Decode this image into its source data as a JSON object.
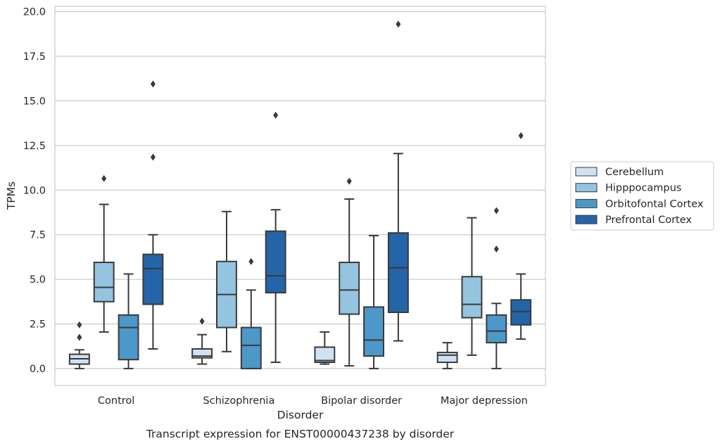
{
  "chart_data": {
    "type": "box",
    "xlabel": "Disorder",
    "ylabel": "TPMs",
    "caption": "Transcript expression for ENST00000437238 by disorder",
    "ylim": [
      -0.95,
      20.3
    ],
    "yticks": [
      0.0,
      2.5,
      5.0,
      7.5,
      10.0,
      12.5,
      15.0,
      17.5,
      20.0
    ],
    "ytick_labels": [
      "0.0",
      "2.5",
      "5.0",
      "7.5",
      "10.0",
      "12.5",
      "15.0",
      "17.5",
      "20.0"
    ],
    "grid": "horizontal",
    "legend_position": "right",
    "categories": [
      "Control",
      "Schizophrenia",
      "Bipolar disorder",
      "Major depression"
    ],
    "series": [
      {
        "name": "Cerebellum",
        "color": "#d0e2f1",
        "boxes": [
          {
            "whislo": 0.0,
            "q1": 0.25,
            "median": 0.55,
            "q3": 0.8,
            "whishi": 1.05,
            "fliers": [
              1.75,
              2.45
            ]
          },
          {
            "whislo": 0.25,
            "q1": 0.6,
            "median": 0.7,
            "q3": 1.1,
            "whishi": 1.9,
            "fliers": [
              2.65
            ]
          },
          {
            "whislo": 0.25,
            "q1": 0.35,
            "median": 0.45,
            "q3": 1.2,
            "whishi": 2.05,
            "fliers": []
          },
          {
            "whislo": 0.0,
            "q1": 0.35,
            "median": 0.75,
            "q3": 0.9,
            "whishi": 1.45,
            "fliers": []
          }
        ]
      },
      {
        "name": "Hipppocampus",
        "color": "#94c4df",
        "boxes": [
          {
            "whislo": 2.05,
            "q1": 3.75,
            "median": 4.55,
            "q3": 5.95,
            "whishi": 9.2,
            "fliers": [
              10.65
            ]
          },
          {
            "whislo": 0.95,
            "q1": 2.3,
            "median": 4.15,
            "q3": 6.0,
            "whishi": 8.8,
            "fliers": []
          },
          {
            "whislo": 0.15,
            "q1": 3.05,
            "median": 4.4,
            "q3": 5.95,
            "whishi": 9.5,
            "fliers": [
              10.5
            ]
          },
          {
            "whislo": 0.75,
            "q1": 2.85,
            "median": 3.6,
            "q3": 5.15,
            "whishi": 8.45,
            "fliers": []
          }
        ]
      },
      {
        "name": "Orbitofontal Cortex",
        "color": "#4b98c9",
        "boxes": [
          {
            "whislo": 0.0,
            "q1": 0.5,
            "median": 2.3,
            "q3": 3.0,
            "whishi": 5.3,
            "fliers": []
          },
          {
            "whislo": 0.0,
            "q1": 0.0,
            "median": 1.3,
            "q3": 2.3,
            "whishi": 4.4,
            "fliers": [
              6.0
            ]
          },
          {
            "whislo": 0.0,
            "q1": 0.7,
            "median": 1.6,
            "q3": 3.45,
            "whishi": 7.45,
            "fliers": []
          },
          {
            "whislo": 0.0,
            "q1": 1.45,
            "median": 2.1,
            "q3": 3.0,
            "whishi": 3.65,
            "fliers": [
              6.7,
              8.85
            ]
          }
        ]
      },
      {
        "name": "Prefrontal Cortex",
        "color": "#2464a8",
        "boxes": [
          {
            "whislo": 1.1,
            "q1": 3.6,
            "median": 5.6,
            "q3": 6.4,
            "whishi": 7.5,
            "fliers": [
              11.85,
              15.95
            ]
          },
          {
            "whislo": 0.35,
            "q1": 4.25,
            "median": 5.2,
            "q3": 7.7,
            "whishi": 8.9,
            "fliers": [
              14.2
            ]
          },
          {
            "whislo": 1.55,
            "q1": 3.15,
            "median": 5.65,
            "q3": 7.6,
            "whishi": 12.05,
            "fliers": [
              19.3
            ]
          },
          {
            "whislo": 1.65,
            "q1": 2.45,
            "median": 3.2,
            "q3": 3.85,
            "whishi": 5.3,
            "fliers": [
              13.05
            ]
          }
        ]
      }
    ]
  }
}
